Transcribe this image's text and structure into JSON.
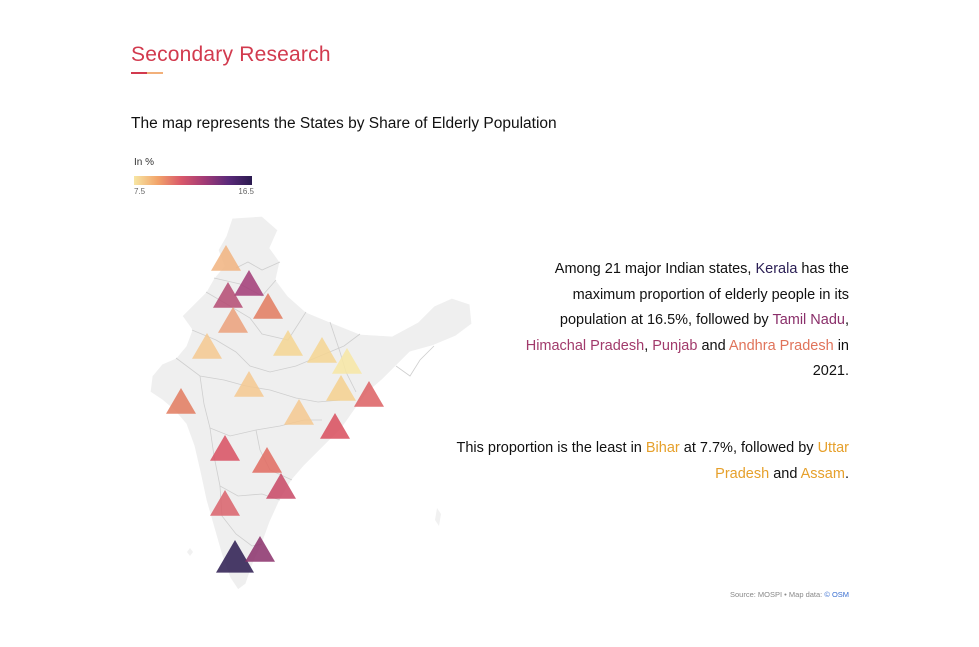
{
  "header": {
    "title": "Secondary Research",
    "accent_color": "#d23a4e",
    "underline_colors": [
      "#d23a4e",
      "#f2b07a"
    ]
  },
  "subtitle": "The map represents the States by Share of Elderly Population",
  "legend": {
    "title": "In %",
    "min_label": "7.5",
    "max_label": "16.5",
    "gradient": [
      "#f7e6a3",
      "#f2a46a",
      "#d9586a",
      "#a13a76",
      "#5b2a7a",
      "#2a1a4f"
    ]
  },
  "paragraph1": {
    "t1": "Among 21 major Indian states, ",
    "kerala": "Kerala",
    "t2": " has the maximum proportion of elderly people in its population at 16.5%, followed by ",
    "tamil_nadu": "Tamil Nadu",
    "t3": ", ",
    "himachal": "Himachal Pradesh",
    "t4": ", ",
    "punjab": "Punjab",
    "t5": " and ",
    "andhra": "Andhra Pradesh",
    "t6": " in 2021."
  },
  "paragraph2": {
    "t1": "This proportion is the least in ",
    "bihar": "Bihar",
    "t2": " at 7.7%, followed by ",
    "up": "Uttar Pradesh",
    "t3": " and ",
    "assam": "Assam",
    "t4": "."
  },
  "source": {
    "text": "Source: MOSPI • Map data: ",
    "osm": "© OSM"
  },
  "map_markers": [
    {
      "name": "marker-jammu-kashmir",
      "color": "#f1b37f"
    },
    {
      "name": "marker-himachal-pradesh",
      "color": "#a13a76"
    },
    {
      "name": "marker-punjab",
      "color": "#b44a72"
    },
    {
      "name": "marker-uttarakhand",
      "color": "#e27a5e"
    },
    {
      "name": "marker-haryana",
      "color": "#eba07a"
    },
    {
      "name": "marker-rajasthan",
      "color": "#f4c88f"
    },
    {
      "name": "marker-uttar-pradesh",
      "color": "#f5d592"
    },
    {
      "name": "marker-bihar",
      "color": "#f7e6a3"
    },
    {
      "name": "marker-madhya-pradesh",
      "color": "#f4c88f"
    },
    {
      "name": "marker-gujarat",
      "color": "#e27a5e"
    },
    {
      "name": "marker-jharkhand",
      "color": "#f4d08e"
    },
    {
      "name": "marker-west-bengal",
      "color": "#dc5f62"
    },
    {
      "name": "marker-chhattisgarh",
      "color": "#f4c88f"
    },
    {
      "name": "marker-odisha",
      "color": "#d84c5c"
    },
    {
      "name": "marker-maharashtra",
      "color": "#d84f60"
    },
    {
      "name": "marker-telangana",
      "color": "#e06a5f"
    },
    {
      "name": "marker-andhra-pradesh",
      "color": "#c84764"
    },
    {
      "name": "marker-karnataka",
      "color": "#d9606a"
    },
    {
      "name": "marker-kerala",
      "color": "#2a1a4f"
    },
    {
      "name": "marker-tamil-nadu",
      "color": "#8a2f6a"
    },
    {
      "name": "marker-assam",
      "color": "#f5d592"
    }
  ]
}
